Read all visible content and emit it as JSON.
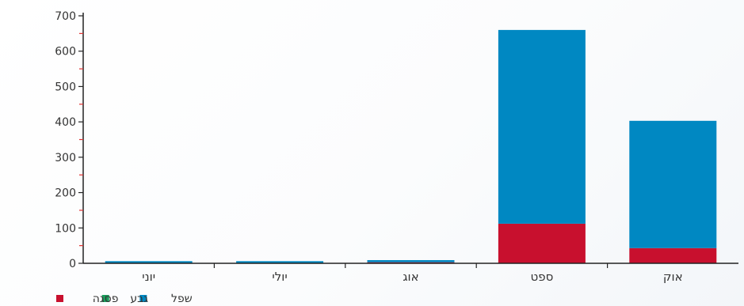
{
  "chart_data": {
    "type": "bar",
    "stacked": true,
    "categories": [
      "יוני",
      "יולי",
      "אוג",
      "ספט",
      "אוק"
    ],
    "series": [
      {
        "name": "פסגה",
        "color": "#c8102e",
        "values": [
          0,
          0,
          3,
          112,
          43
        ]
      },
      {
        "name": "גבע",
        "color": "#1a9e5c",
        "values": [
          0,
          0,
          0,
          0,
          0
        ]
      },
      {
        "name": "שפל",
        "color": "#0088c2",
        "values": [
          6,
          6,
          6,
          548,
          360
        ]
      }
    ],
    "ylim": [
      0,
      700
    ],
    "yticks": [
      0,
      100,
      200,
      300,
      400,
      500,
      600,
      700
    ],
    "legend_position": "bottom-left",
    "grid": false
  }
}
